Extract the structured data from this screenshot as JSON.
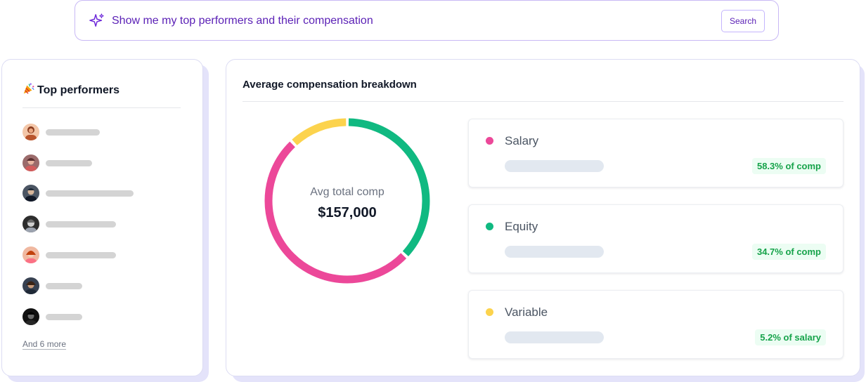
{
  "search": {
    "query": "Show me my top performers and their compensation",
    "button_label": "Search"
  },
  "top_performers": {
    "title": "Top performers",
    "title_icon": "party-popper-icon",
    "performers": [
      {
        "avatar": "avatar-1"
      },
      {
        "avatar": "avatar-2"
      },
      {
        "avatar": "avatar-3"
      },
      {
        "avatar": "avatar-4"
      },
      {
        "avatar": "avatar-5"
      },
      {
        "avatar": "avatar-6"
      },
      {
        "avatar": "avatar-7"
      }
    ],
    "more_link": "And 6 more"
  },
  "compensation": {
    "title": "Average compensation breakdown",
    "center_label": "Avg total comp",
    "center_value": "$157,000",
    "items": [
      {
        "label": "Salary",
        "badge": "58.3% of comp",
        "color": "#ec4899"
      },
      {
        "label": "Equity",
        "badge": "34.7% of comp",
        "color": "#10b981"
      },
      {
        "label": "Variable",
        "badge": "5.2% of salary",
        "color": "#fcd34d"
      }
    ]
  },
  "colors": {
    "accent": "#5b21b6",
    "salary": "#ec4899",
    "equity": "#10b981",
    "variable": "#fcd34d"
  }
}
